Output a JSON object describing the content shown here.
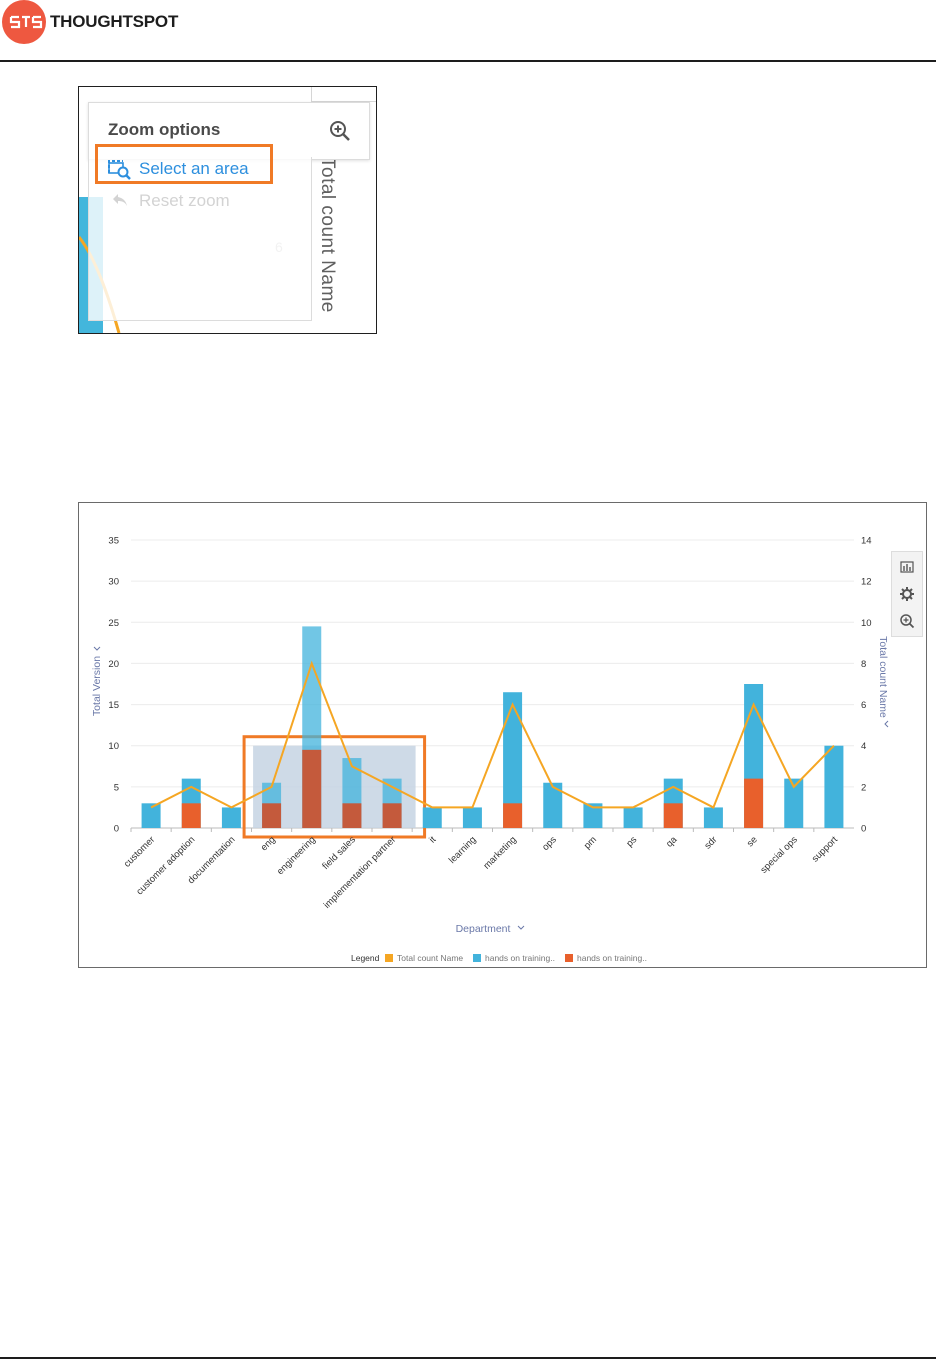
{
  "header": {
    "brand": "THOUGHTSPOT",
    "logo_icon": "thoughtspot-logo-icon",
    "brand_color": "#ee5840"
  },
  "zoom_menu": {
    "title": "Zoom options",
    "select_area_label": "Select an area",
    "reset_zoom_label": "Reset zoom",
    "background_axis_label": "Total count Name",
    "background_tick": "6",
    "highlight_color": "#f07a26",
    "link_color": "#2d8fde",
    "disabled_color": "#d3d3d3"
  },
  "chart_data": {
    "type": "bar",
    "xlabel": "Department",
    "ylabel": "Total Version",
    "y2label": "Total count Name",
    "ylim": [
      0,
      35
    ],
    "y2lim": [
      0,
      14
    ],
    "yticks": [
      0,
      5,
      10,
      15,
      20,
      25,
      30,
      35
    ],
    "y2ticks": [
      0,
      2,
      4,
      6,
      8,
      10,
      12,
      14
    ],
    "grid": true,
    "legend_title": "Legend",
    "legend_placement": "bottom",
    "categories": [
      "customer",
      "customer adoption",
      "documentation",
      "eng",
      "engineering",
      "field sales",
      "implementation partner",
      "it",
      "learning",
      "marketing",
      "ops",
      "pm",
      "ps",
      "qa",
      "sdr",
      "se",
      "special ops",
      "support"
    ],
    "series": [
      {
        "name": "hands on training..",
        "type": "bar-stack",
        "color": "#42b3dc",
        "values": [
          3,
          3,
          2.5,
          2.5,
          15,
          5.5,
          3,
          2.5,
          2.5,
          13.5,
          5.5,
          3,
          2.5,
          3,
          2.5,
          11.5,
          6,
          10
        ]
      },
      {
        "name": "hands on training..",
        "type": "bar-stack",
        "color": "#e8602c",
        "values": [
          0,
          3,
          0,
          3,
          9.5,
          3,
          3,
          0,
          0,
          3,
          0,
          0,
          0,
          3,
          0,
          6,
          0,
          0
        ]
      },
      {
        "name": "Total count Name",
        "type": "line",
        "axis": "right",
        "color": "#f5a623",
        "values": [
          1,
          2,
          1,
          2,
          8,
          3,
          2,
          1,
          1,
          6,
          2,
          1,
          1,
          2,
          1,
          6,
          2,
          4
        ]
      }
    ],
    "zoom_selection": {
      "from": "eng",
      "to": "implementation partner",
      "y_max": 10
    }
  },
  "chart_toolbar": {
    "items": [
      {
        "icon": "chart-type-icon"
      },
      {
        "icon": "gear-icon"
      },
      {
        "icon": "zoom-icon"
      }
    ],
    "selection_color": "#f07a26"
  }
}
